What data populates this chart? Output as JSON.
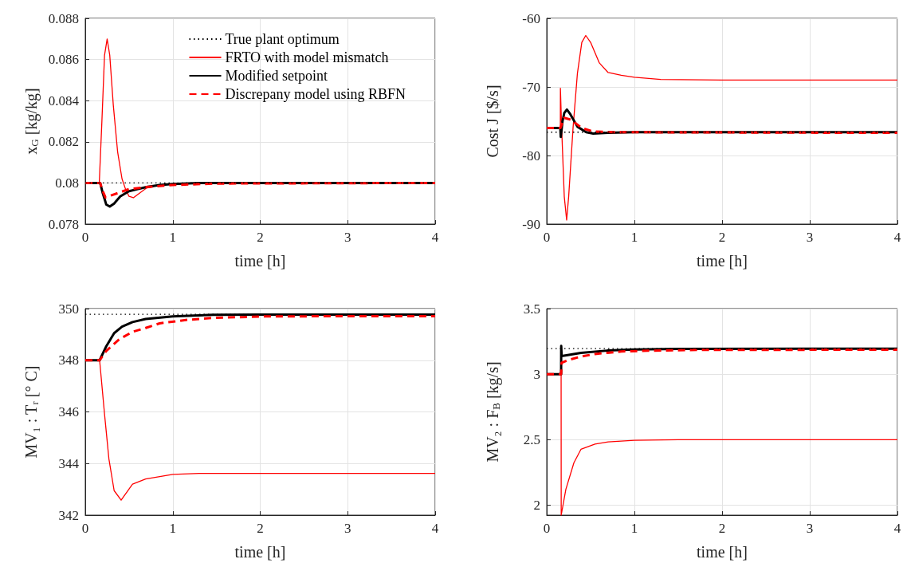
{
  "chart_data": [
    {
      "type": "line",
      "xlabel": "time [h]",
      "ylabel": "x$_{G}$ [kg/kg]",
      "xlim": [
        0,
        4
      ],
      "xticks": [
        0,
        1,
        2,
        3,
        4
      ],
      "ylim": [
        0.078,
        0.088
      ],
      "yticks": [
        0.078,
        0.08,
        0.082,
        0.084,
        0.086,
        0.088
      ],
      "grid": true,
      "legend": "top",
      "marker": "none",
      "series": [
        {
          "name": "True plant optimum",
          "color": "#000000",
          "line_style": "dotted",
          "x": [
            0,
            4
          ],
          "values": [
            0.08,
            0.08
          ]
        },
        {
          "name": "FRTO with model mismatch",
          "color": "#ff0000",
          "line_style": "solid",
          "x": [
            0,
            0.16,
            0.19,
            0.22,
            0.25,
            0.28,
            0.32,
            0.37,
            0.42,
            0.46,
            0.5,
            0.55,
            0.62,
            0.7,
            0.85,
            1.0,
            1.5,
            4
          ],
          "values": [
            0.08,
            0.08,
            0.083,
            0.0862,
            0.087,
            0.0862,
            0.0838,
            0.0815,
            0.0802,
            0.0797,
            0.07935,
            0.07928,
            0.0795,
            0.07975,
            0.0799,
            0.07995,
            0.08,
            0.08
          ]
        },
        {
          "name": "Modified setpoint",
          "color": "#000000",
          "line_style": "solid",
          "x": [
            0,
            0.17,
            0.2,
            0.24,
            0.28,
            0.33,
            0.4,
            0.5,
            0.6,
            0.7,
            0.85,
            1.0,
            1.3,
            4
          ],
          "values": [
            0.08,
            0.08,
            0.0795,
            0.07895,
            0.07885,
            0.079,
            0.07935,
            0.0796,
            0.0797,
            0.0798,
            0.0799,
            0.07995,
            0.08,
            0.08
          ]
        },
        {
          "name": "Discrepany model using RBFN",
          "color": "#ff0000",
          "line_style": "dashed",
          "x": [
            0,
            0.17,
            0.2,
            0.23,
            0.3,
            0.4,
            0.5,
            0.7,
            1.0,
            1.5,
            4
          ],
          "values": [
            0.08,
            0.08,
            0.0796,
            0.0793,
            0.0794,
            0.07955,
            0.0797,
            0.0798,
            0.0799,
            0.07997,
            0.08
          ]
        }
      ]
    },
    {
      "type": "line",
      "xlabel": "time [h]",
      "ylabel": "Cost J [$/s]",
      "xlim": [
        0,
        4
      ],
      "xticks": [
        0,
        1,
        2,
        3,
        4
      ],
      "ylim": [
        -90,
        -60
      ],
      "yticks": [
        -90,
        -80,
        -70,
        -60
      ],
      "grid": true,
      "legend": false,
      "marker": "none",
      "series": [
        {
          "color": "#000000",
          "line_style": "dotted",
          "x": [
            0,
            4
          ],
          "values": [
            -76.6,
            -76.6
          ]
        },
        {
          "color": "#ff0000",
          "line_style": "solid",
          "x": [
            0,
            0.155,
            0.156,
            0.17,
            0.2,
            0.227,
            0.25,
            0.3,
            0.35,
            0.4,
            0.445,
            0.5,
            0.6,
            0.7,
            0.85,
            1.0,
            1.3,
            2,
            4
          ],
          "values": [
            -76,
            -76,
            -70.2,
            -76,
            -86,
            -89.4,
            -86,
            -76,
            -68,
            -63.5,
            -62.5,
            -63.5,
            -66.5,
            -67.9,
            -68.3,
            -68.6,
            -68.9,
            -69,
            -69
          ]
        },
        {
          "color": "#000000",
          "line_style": "solid",
          "x": [
            0,
            0.155,
            0.16,
            0.18,
            0.2,
            0.23,
            0.27,
            0.35,
            0.45,
            0.53,
            0.7,
            1,
            4
          ],
          "values": [
            -76,
            -76,
            -77.3,
            -75,
            -73.8,
            -73.3,
            -74,
            -75.8,
            -76.6,
            -76.8,
            -76.7,
            -76.6,
            -76.6
          ]
        },
        {
          "color": "#ff0000",
          "line_style": "dashed",
          "x": [
            0,
            0.155,
            0.2,
            0.28,
            0.4,
            0.53,
            0.8,
            4
          ],
          "values": [
            -76,
            -76,
            -74.5,
            -74.8,
            -76,
            -76.5,
            -76.6,
            -76.7
          ]
        }
      ]
    },
    {
      "type": "line",
      "xlabel": "time [h]",
      "ylabel": "MV₁ : Tᵣ [° C]",
      "xlim": [
        0,
        4
      ],
      "xticks": [
        0,
        1,
        2,
        3,
        4
      ],
      "ylim": [
        342,
        350
      ],
      "yticks": [
        342,
        344,
        346,
        348,
        350
      ],
      "grid": true,
      "legend": false,
      "marker": "none",
      "series": [
        {
          "color": "#000000",
          "line_style": "dotted",
          "x": [
            0,
            4
          ],
          "values": [
            349.78,
            349.78
          ]
        },
        {
          "color": "#ff0000",
          "line_style": "solid",
          "x": [
            0,
            0.164,
            0.22,
            0.27,
            0.33,
            0.41,
            0.54,
            0.69,
            1.0,
            1.3,
            2,
            4
          ],
          "values": [
            348,
            348,
            345.92,
            344.18,
            342.95,
            342.58,
            343.2,
            343.4,
            343.58,
            343.62,
            343.62,
            343.62
          ]
        },
        {
          "color": "#000000",
          "line_style": "solid",
          "x": [
            0,
            0.164,
            0.24,
            0.33,
            0.42,
            0.54,
            0.69,
            1.0,
            1.46,
            2,
            4
          ],
          "values": [
            348,
            348,
            348.54,
            349.05,
            349.3,
            349.48,
            349.6,
            349.7,
            349.76,
            349.77,
            349.77
          ]
        },
        {
          "color": "#ff0000",
          "line_style": "dashed",
          "x": [
            0,
            0.164,
            0.24,
            0.39,
            0.54,
            0.69,
            0.85,
            1.15,
            1.46,
            2.06,
            4
          ],
          "values": [
            348,
            348,
            348.36,
            348.82,
            349.1,
            349.25,
            349.43,
            349.56,
            349.64,
            349.7,
            349.71
          ]
        }
      ]
    },
    {
      "type": "line",
      "xlabel": "time [h]",
      "ylabel": "MV₂ : F$_{B}$ [kg/s]",
      "xlim": [
        0,
        4
      ],
      "xticks": [
        0,
        1,
        2,
        3,
        4
      ],
      "ylim": [
        1.925,
        3.5
      ],
      "yticks": [
        2,
        2.5,
        3,
        3.5
      ],
      "grid": true,
      "legend": false,
      "marker": "none",
      "series": [
        {
          "color": "#000000",
          "line_style": "dotted",
          "x": [
            0,
            4
          ],
          "values": [
            3.195,
            3.195
          ]
        },
        {
          "color": "#ff0000",
          "line_style": "solid",
          "x": [
            0,
            0.164,
            0.165,
            0.218,
            0.31,
            0.39,
            0.55,
            0.7,
            1.0,
            1.5,
            4
          ],
          "values": [
            3,
            3,
            1.925,
            2.122,
            2.325,
            2.427,
            2.467,
            2.484,
            2.496,
            2.5,
            2.5
          ]
        },
        {
          "color": "#000000",
          "line_style": "solid",
          "x": [
            0,
            0.164,
            0.165,
            0.17,
            0.39,
            0.69,
            1.0,
            1.5,
            4
          ],
          "values": [
            3,
            3,
            3.215,
            3.138,
            3.163,
            3.18,
            3.189,
            3.193,
            3.195
          ]
        },
        {
          "color": "#ff0000",
          "line_style": "dashed",
          "x": [
            0,
            0.164,
            0.17,
            0.245,
            0.39,
            0.55,
            0.85,
            1.15,
            1.76,
            4
          ],
          "values": [
            3,
            3,
            3.087,
            3.108,
            3.134,
            3.154,
            3.173,
            3.179,
            3.185,
            3.187
          ]
        }
      ]
    }
  ]
}
